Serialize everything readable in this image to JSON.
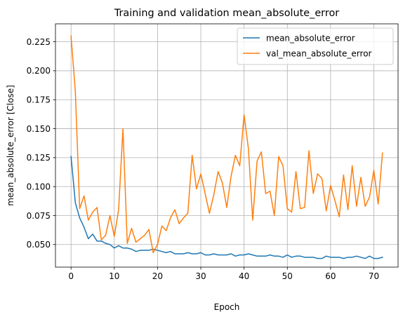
{
  "chart_data": {
    "type": "line",
    "title": "Training and validation mean_absolute_error",
    "xlabel": "Epoch",
    "ylabel": "mean_absolute_error [Close]",
    "xlim": [
      -3.6,
      75.6
    ],
    "ylim": [
      0.0305,
      0.2405
    ],
    "xticks": [
      0,
      10,
      20,
      30,
      40,
      50,
      60,
      70
    ],
    "yticks": [
      0.05,
      0.075,
      0.1,
      0.125,
      0.15,
      0.175,
      0.2,
      0.225
    ],
    "ytick_labels": [
      "0.050",
      "0.075",
      "0.100",
      "0.125",
      "0.150",
      "0.175",
      "0.200",
      "0.225"
    ],
    "grid": true,
    "legend_position": "top-right",
    "series": [
      {
        "name": "mean_absolute_error",
        "color": "#1f77b4",
        "x": [
          0,
          1,
          2,
          3,
          4,
          5,
          6,
          7,
          8,
          9,
          10,
          11,
          12,
          13,
          14,
          15,
          16,
          17,
          18,
          19,
          20,
          21,
          22,
          23,
          24,
          25,
          26,
          27,
          28,
          29,
          30,
          31,
          32,
          33,
          34,
          35,
          36,
          37,
          38,
          39,
          40,
          41,
          42,
          43,
          44,
          45,
          46,
          47,
          48,
          49,
          50,
          51,
          52,
          53,
          54,
          55,
          56,
          57,
          58,
          59,
          60,
          61,
          62,
          63,
          64,
          65,
          66,
          67,
          68,
          69,
          70,
          71,
          72
        ],
        "values": [
          0.126,
          0.086,
          0.073,
          0.065,
          0.055,
          0.059,
          0.053,
          0.053,
          0.051,
          0.05,
          0.047,
          0.049,
          0.047,
          0.047,
          0.046,
          0.044,
          0.045,
          0.045,
          0.045,
          0.046,
          0.045,
          0.044,
          0.043,
          0.044,
          0.042,
          0.042,
          0.042,
          0.043,
          0.042,
          0.042,
          0.043,
          0.041,
          0.041,
          0.042,
          0.041,
          0.041,
          0.041,
          0.042,
          0.04,
          0.041,
          0.041,
          0.042,
          0.041,
          0.04,
          0.04,
          0.04,
          0.041,
          0.04,
          0.04,
          0.039,
          0.041,
          0.039,
          0.04,
          0.04,
          0.039,
          0.039,
          0.039,
          0.038,
          0.038,
          0.04,
          0.039,
          0.039,
          0.039,
          0.038,
          0.039,
          0.039,
          0.04,
          0.039,
          0.038,
          0.04,
          0.038,
          0.038,
          0.039
        ]
      },
      {
        "name": "val_mean_absolute_error",
        "color": "#ff7f0e",
        "x": [
          0,
          1,
          2,
          3,
          4,
          5,
          6,
          7,
          8,
          9,
          10,
          11,
          12,
          13,
          14,
          15,
          16,
          17,
          18,
          19,
          20,
          21,
          22,
          23,
          24,
          25,
          26,
          27,
          28,
          29,
          30,
          31,
          32,
          33,
          34,
          35,
          36,
          37,
          38,
          39,
          40,
          41,
          42,
          43,
          44,
          45,
          46,
          47,
          48,
          49,
          50,
          51,
          52,
          53,
          54,
          55,
          56,
          57,
          58,
          59,
          60,
          61,
          62,
          63,
          64,
          65,
          66,
          67,
          68,
          69,
          70,
          71,
          72
        ],
        "values": [
          0.23,
          0.182,
          0.081,
          0.092,
          0.071,
          0.078,
          0.082,
          0.054,
          0.058,
          0.075,
          0.057,
          0.08,
          0.15,
          0.051,
          0.064,
          0.052,
          0.055,
          0.058,
          0.063,
          0.043,
          0.05,
          0.066,
          0.062,
          0.073,
          0.08,
          0.068,
          0.073,
          0.077,
          0.127,
          0.098,
          0.111,
          0.094,
          0.077,
          0.093,
          0.113,
          0.103,
          0.082,
          0.109,
          0.127,
          0.118,
          0.162,
          0.133,
          0.071,
          0.122,
          0.13,
          0.094,
          0.096,
          0.075,
          0.126,
          0.118,
          0.081,
          0.078,
          0.113,
          0.081,
          0.082,
          0.131,
          0.094,
          0.111,
          0.107,
          0.079,
          0.101,
          0.088,
          0.074,
          0.11,
          0.08,
          0.118,
          0.083,
          0.108,
          0.083,
          0.091,
          0.114,
          0.085,
          0.129
        ]
      }
    ]
  }
}
